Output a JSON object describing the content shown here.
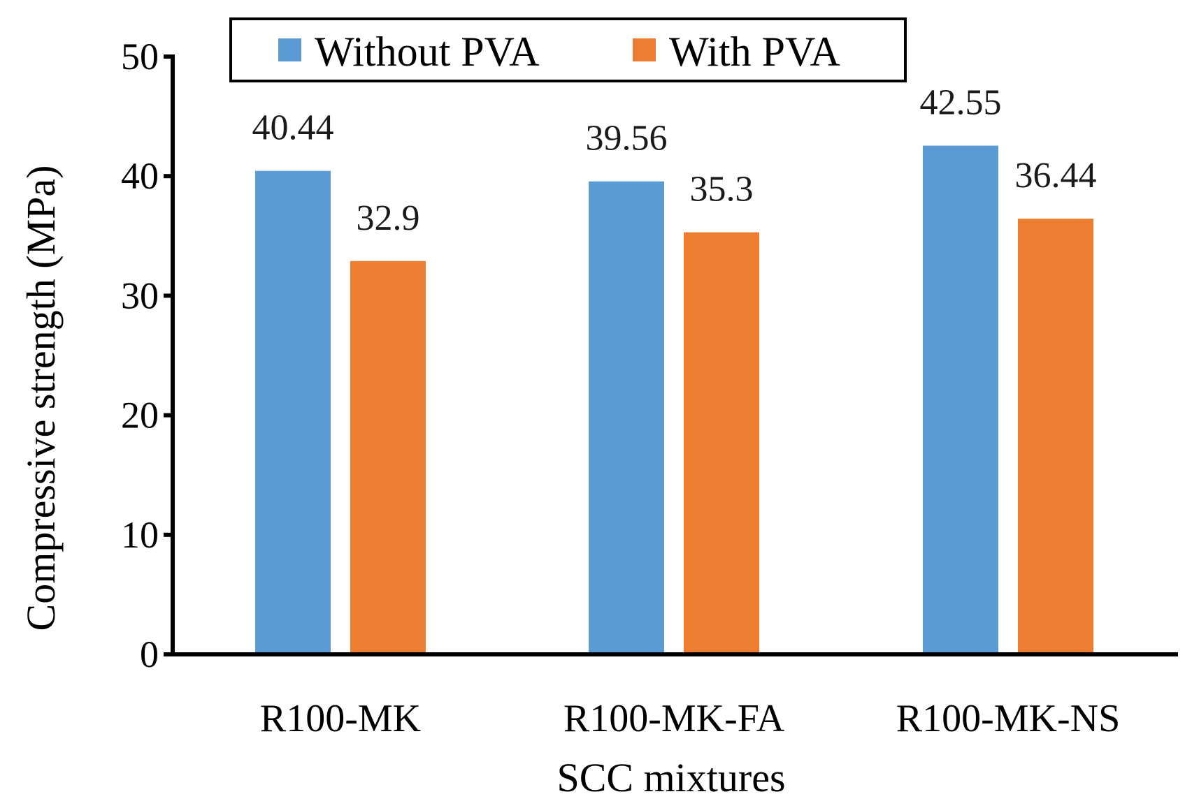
{
  "chart_data": {
    "type": "bar",
    "title": "",
    "xlabel": "SCC mixtures",
    "ylabel": "Compressive strength (MPa)",
    "ylim": [
      0,
      50
    ],
    "yticks": [
      0,
      10,
      20,
      30,
      40,
      50
    ],
    "ytick_labels": [
      "0",
      "10",
      "20",
      "30",
      "40",
      "50"
    ],
    "categories": [
      "R100-MK",
      "R100-MK-FA",
      "R100-MK-NS"
    ],
    "series": [
      {
        "name": "Without PVA",
        "color": "#5B9BD5",
        "values": [
          40.44,
          39.56,
          42.55
        ],
        "labels": [
          "40.44",
          "39.56",
          "42.55"
        ]
      },
      {
        "name": "With PVA",
        "color": "#ED7D31",
        "values": [
          32.9,
          35.3,
          36.44
        ],
        "labels": [
          "32.9",
          "35.3",
          "36.44"
        ]
      }
    ],
    "legend_position": "top",
    "grid": false
  }
}
